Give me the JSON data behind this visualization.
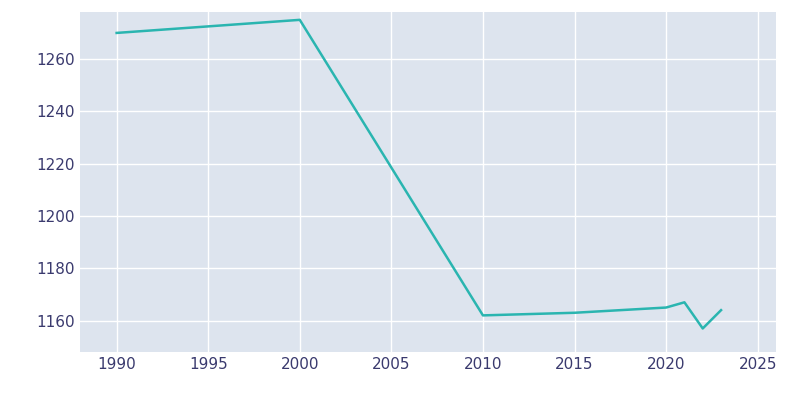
{
  "years": [
    1990,
    2000,
    2010,
    2015,
    2020,
    2021,
    2022,
    2023
  ],
  "population": [
    1270,
    1275,
    1162,
    1163,
    1165,
    1167,
    1157,
    1164
  ],
  "line_color": "#2ab5b0",
  "axes_background_color": "#dde4ee",
  "figure_background": "#ffffff",
  "grid_color": "#ffffff",
  "tick_color": "#3a3a6e",
  "xlim": [
    1988,
    2026
  ],
  "ylim": [
    1148,
    1278
  ],
  "yticks": [
    1160,
    1180,
    1200,
    1220,
    1240,
    1260
  ],
  "xticks": [
    1990,
    1995,
    2000,
    2005,
    2010,
    2015,
    2020,
    2025
  ],
  "linewidth": 1.8,
  "tick_fontsize": 11
}
